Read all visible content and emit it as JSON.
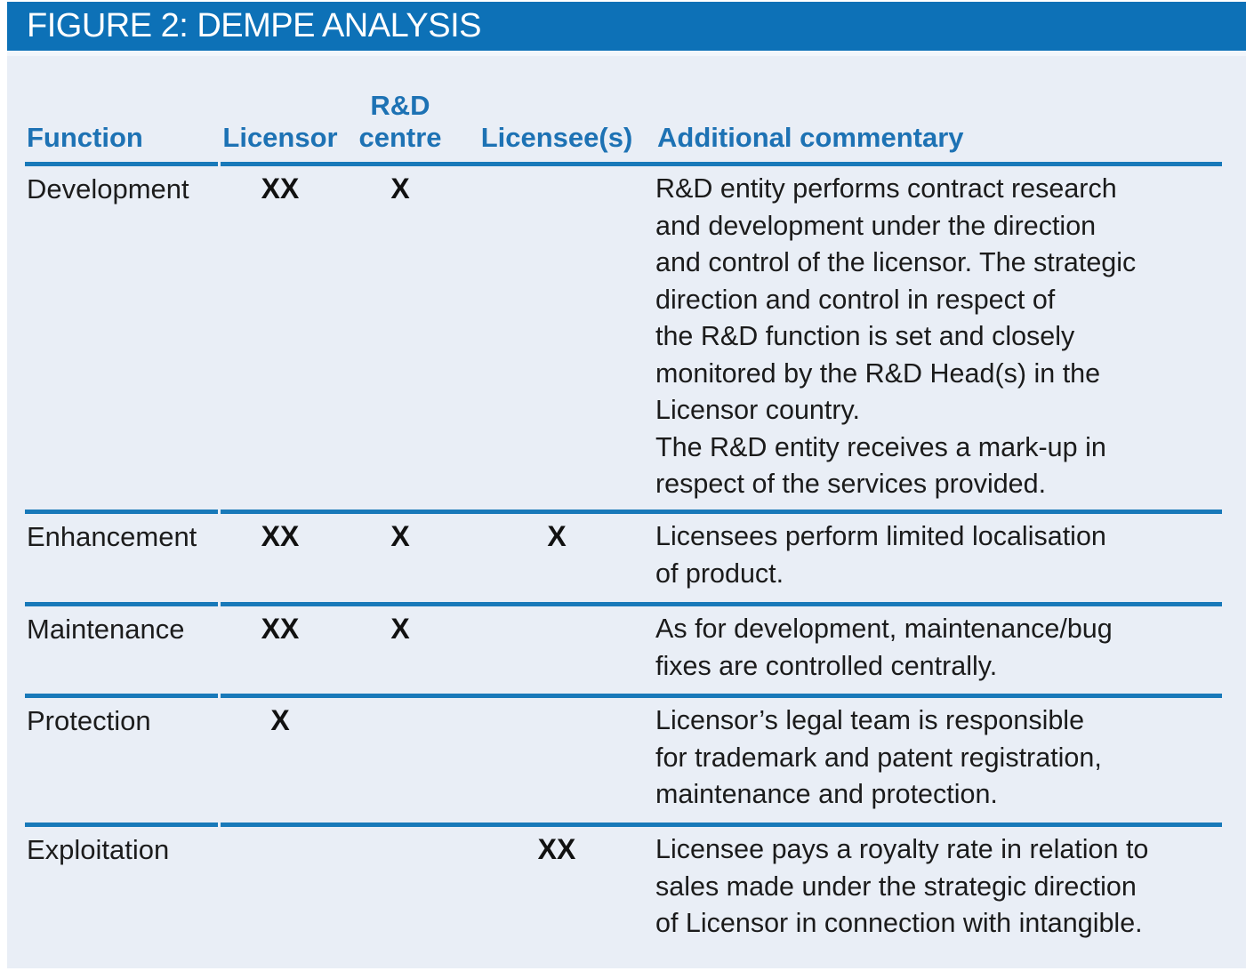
{
  "figure": {
    "title": "FIGURE 2: DEMPE ANALYSIS"
  },
  "colors": {
    "title_bar_blue": "#0d71b7",
    "panel_background": "#e9eef6",
    "header_text_blue": "#1d72b4",
    "divider_blue": "#1879b9",
    "body_text": "#1b1b1b"
  },
  "table": {
    "header": {
      "function": "Function",
      "licensor": "Licensor",
      "rd_centre_line1": "R&D",
      "rd_centre_line2": "centre",
      "licensees": "Licensee(s)",
      "commentary": "Additional commentary"
    },
    "rows": [
      {
        "function": "Development",
        "licensor": "XX",
        "rd_centre": "X",
        "licensees": "",
        "commentary": [
          "R&D entity performs contract research\nand development under the direction\nand control of the licensor. The strategic\ndirection and control in respect of\nthe R&D function is set and closely\nmonitored by the R&D Head(s) in the\nLicensor country.",
          "The R&D entity receives a mark-up in\nrespect of the services provided."
        ]
      },
      {
        "function": "Enhancement",
        "licensor": "XX",
        "rd_centre": "X",
        "licensees": "X",
        "commentary": [
          "Licensees perform limited localisation\nof product."
        ]
      },
      {
        "function": "Maintenance",
        "licensor": "XX",
        "rd_centre": "X",
        "licensees": "",
        "commentary": [
          "As for development, maintenance/bug\nfixes are controlled centrally."
        ]
      },
      {
        "function": "Protection",
        "licensor": "X",
        "rd_centre": "",
        "licensees": "",
        "commentary": [
          "Licensor’s legal team is responsible\nfor trademark and patent registration,\nmaintenance and protection."
        ]
      },
      {
        "function": "Exploitation",
        "licensor": "",
        "rd_centre": "",
        "licensees": "XX",
        "commentary": [
          "Licensee pays a royalty rate in relation to\nsales made under the strategic direction\nof Licensor in connection with intangible."
        ]
      }
    ]
  }
}
